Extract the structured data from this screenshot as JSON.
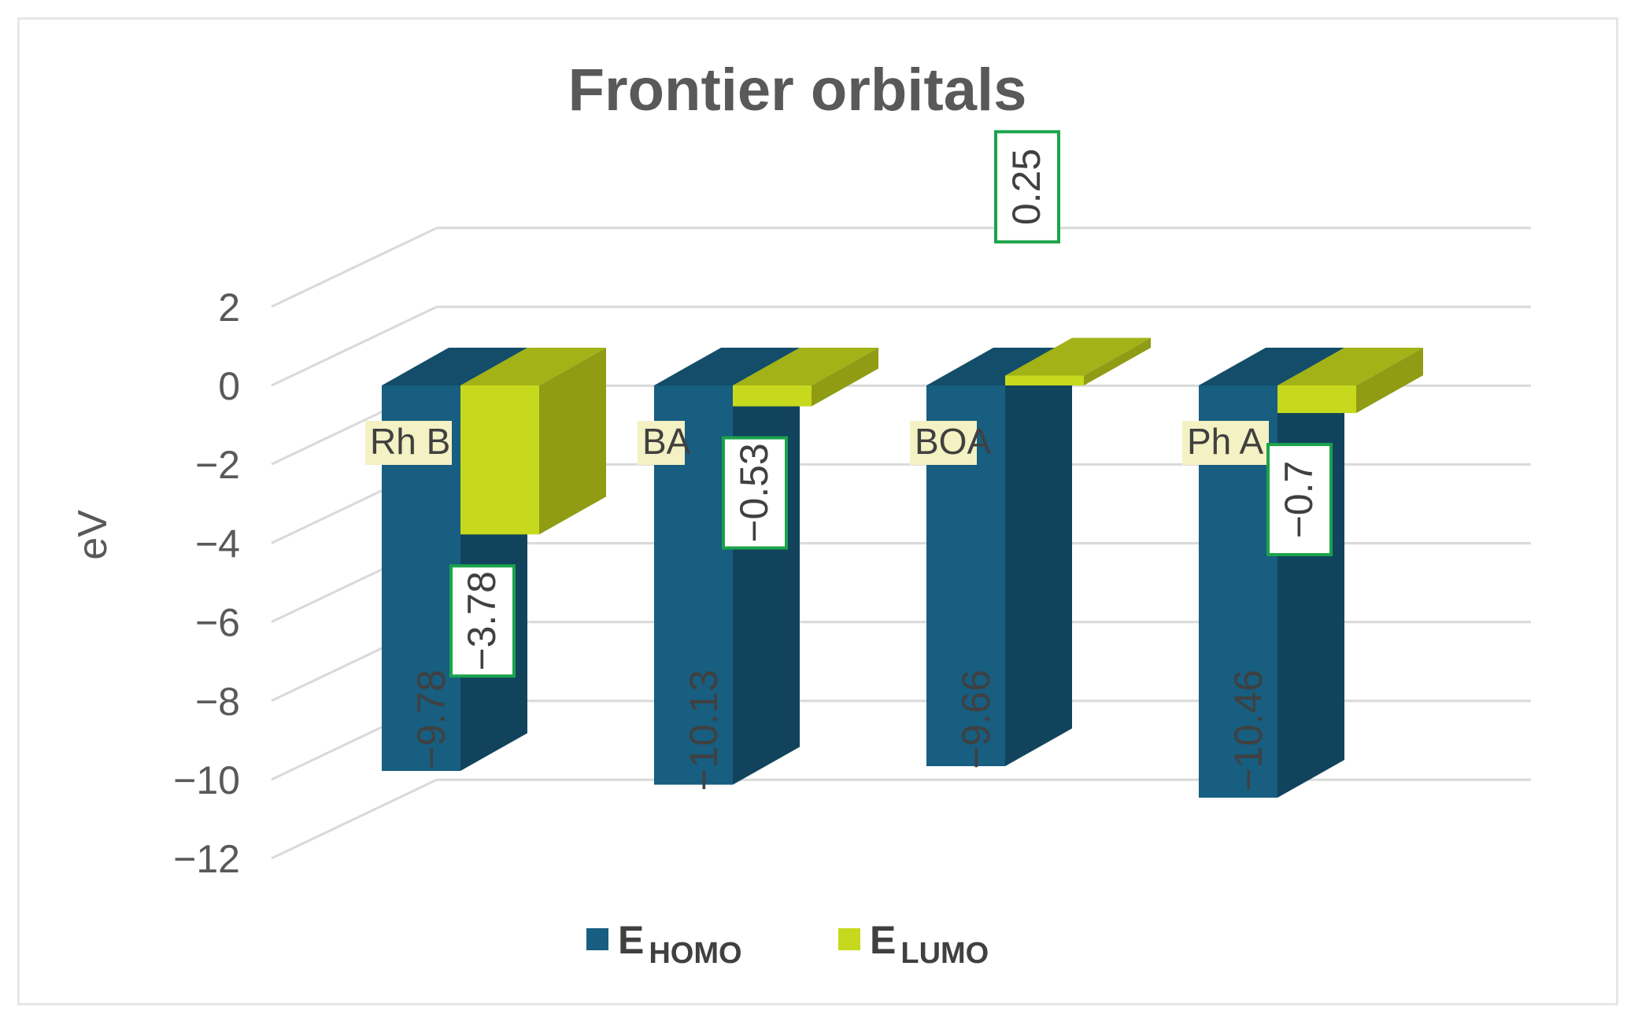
{
  "chart_data": {
    "type": "bar",
    "title": "Frontier orbitals",
    "ylabel": "eV",
    "xlabel": "",
    "categories": [
      "Rh B",
      "BA",
      "BOA",
      "Ph A"
    ],
    "series": [
      {
        "name": "E_HOMO",
        "legend_main": "E",
        "legend_sub": "HOMO",
        "values": [
          -9.78,
          -10.13,
          -9.66,
          -10.46
        ],
        "color": "#175e80"
      },
      {
        "name": "E_LUMO",
        "legend_main": "E",
        "legend_sub": "LUMO",
        "values": [
          -3.78,
          -0.53,
          0.25,
          -0.7
        ],
        "color": "#c6d91c"
      }
    ],
    "data_labels": {
      "E_HOMO": [
        "−9.78",
        "−10.13",
        "−9.66",
        "−10.46"
      ],
      "E_LUMO": [
        "−3.78",
        "−0.53",
        "0.25",
        "−0.7"
      ]
    },
    "ylim": [
      -12,
      2
    ],
    "yticks": [
      2,
      0,
      -2,
      -4,
      -6,
      -8,
      -10,
      -12
    ],
    "ytick_labels": [
      "2",
      "0",
      "−2",
      "−4",
      "−6",
      "−8",
      "−10",
      "−12"
    ],
    "grid": true,
    "legend_position": "bottom",
    "style": "3d-column"
  }
}
